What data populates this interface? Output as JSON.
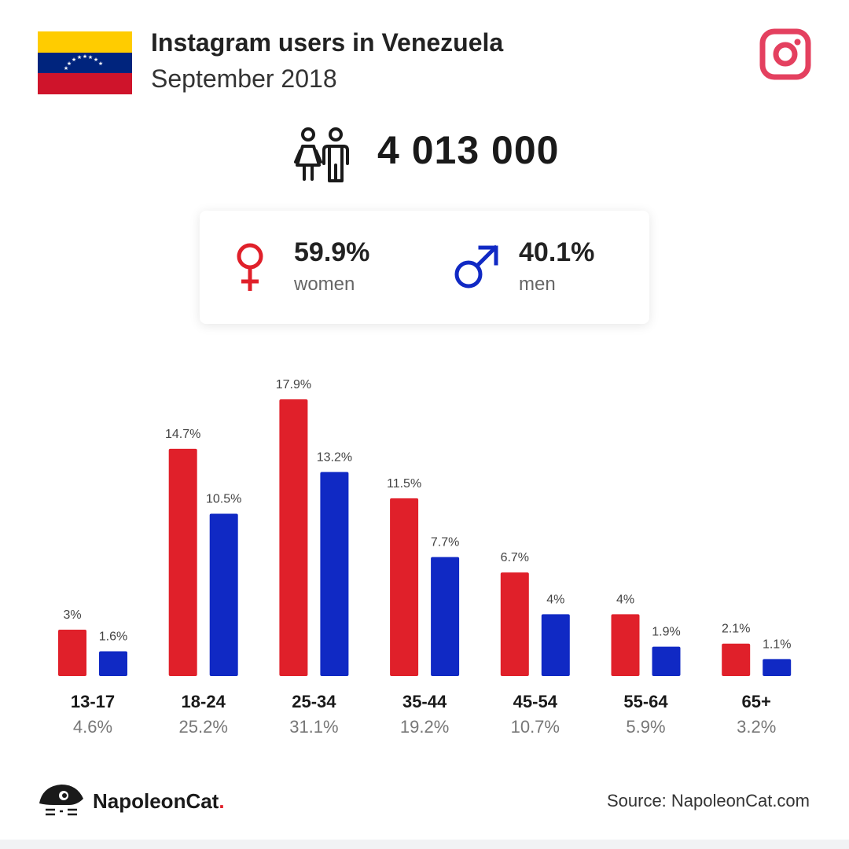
{
  "header": {
    "title": "Instagram users in Venezuela",
    "subtitle": "September 2018"
  },
  "total": {
    "value": "4 013 000",
    "icon": "people-icon"
  },
  "gender": {
    "women": {
      "value": "59.9%",
      "label": "women",
      "icon": "female-symbol-icon",
      "color": "#e0202a"
    },
    "men": {
      "value": "40.1%",
      "label": "men",
      "icon": "male-symbol-icon",
      "color": "#1029c4"
    }
  },
  "chart_data": {
    "type": "bar",
    "categories": [
      "13-17",
      "18-24",
      "25-34",
      "35-44",
      "45-54",
      "55-64",
      "65+"
    ],
    "category_totals": [
      "4.6%",
      "25.2%",
      "31.1%",
      "19.2%",
      "10.7%",
      "5.9%",
      "3.2%"
    ],
    "series": [
      {
        "name": "women",
        "color": "#e0202a",
        "values": [
          3,
          14.7,
          17.9,
          11.5,
          6.7,
          4,
          2.1
        ],
        "labels": [
          "3%",
          "14.7%",
          "17.9%",
          "11.5%",
          "6.7%",
          "4%",
          "2.1%"
        ]
      },
      {
        "name": "men",
        "color": "#1029c4",
        "values": [
          1.6,
          10.5,
          13.2,
          7.7,
          4,
          1.9,
          1.1
        ],
        "labels": [
          "1.6%",
          "10.5%",
          "13.2%",
          "7.7%",
          "4%",
          "1.9%",
          "1.1%"
        ]
      }
    ],
    "ylim": [
      0,
      17.9
    ],
    "grid": false,
    "legend": "none"
  },
  "footer": {
    "brand": "NapoleonCat",
    "brand_dot": ".",
    "source": "Source: NapoleonCat.com"
  },
  "colors": {
    "flag_yellow": "#ffcc00",
    "flag_blue": "#00247d",
    "flag_red": "#cf142b",
    "instagram": "#e4405f"
  }
}
